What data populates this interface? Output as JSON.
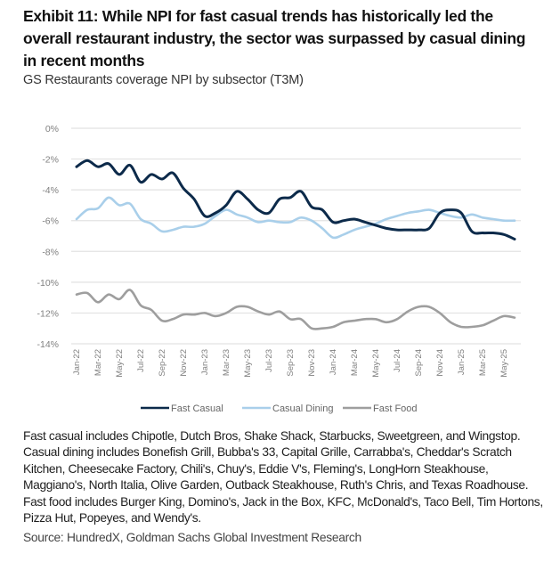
{
  "title": "Exhibit 11: While NPI for fast casual trends has historically led the overall restaurant industry, the sector was surpassed by casual dining in recent months",
  "subtitle": "GS Restaurants coverage NPI by subsector (T3M)",
  "notes": "Fast casual includes Chipotle, Dutch Bros, Shake Shack, Starbucks, Sweetgreen, and Wingstop. Casual dining includes Bonefish Grill, Bubba's 33, Capital Grille, Carrabba's, Cheddar's Scratch Kitchen, Cheesecake Factory, Chili's, Chuy's, Eddie V's, Fleming's, LongHorn Steakhouse, Maggiano's, North Italia, Olive Garden, Outback Steakhouse, Ruth's Chris, and Texas Roadhouse. Fast food includes Burger King, Domino's, Jack in the Box, KFC, McDonald's, Taco Bell, Tim Hortons, Pizza Hut, Popeyes, and Wendy's.",
  "source": "Source: HundredX, Goldman Sachs Global Investment Research",
  "chart_data": {
    "type": "line",
    "title": "GS Restaurants coverage NPI by subsector (T3M)",
    "xlabel": "",
    "ylabel": "",
    "ylim": [
      -14,
      0
    ],
    "yticks": [
      0,
      -2,
      -4,
      -6,
      -8,
      -10,
      -12,
      -14
    ],
    "ytick_labels": [
      "0%",
      "-2%",
      "-4%",
      "-6%",
      "-8%",
      "-10%",
      "-12%",
      "-14%"
    ],
    "grid": true,
    "legend_position": "bottom",
    "x": [
      "Jan-22",
      "Feb-22",
      "Mar-22",
      "Apr-22",
      "May-22",
      "Jun-22",
      "Jul-22",
      "Aug-22",
      "Sep-22",
      "Oct-22",
      "Nov-22",
      "Dec-22",
      "Jan-23",
      "Feb-23",
      "Mar-23",
      "Apr-23",
      "May-23",
      "Jun-23",
      "Jul-23",
      "Aug-23",
      "Sep-23",
      "Oct-23",
      "Nov-23",
      "Dec-23",
      "Jan-24",
      "Feb-24",
      "Mar-24",
      "Apr-24",
      "May-24",
      "Jun-24",
      "Jul-24",
      "Aug-24",
      "Sep-24",
      "Oct-24",
      "Nov-24",
      "Dec-24",
      "Jan-25",
      "Feb-25",
      "Mar-25",
      "Apr-25",
      "May-25",
      "Jun-25"
    ],
    "xtick_labels": [
      "Jan-22",
      "Mar-22",
      "May-22",
      "Jul-22",
      "Sep-22",
      "Nov-22",
      "Jan-23",
      "Mar-23",
      "May-23",
      "Jul-23",
      "Sep-23",
      "Nov-23",
      "Jan-24",
      "Mar-24",
      "May-24",
      "Jul-24",
      "Sep-24",
      "Nov-24",
      "Jan-25",
      "Mar-25",
      "May-25"
    ],
    "series": [
      {
        "name": "Fast Casual",
        "color": "#0c2a4a",
        "values": [
          -2.5,
          -2.1,
          -2.5,
          -2.3,
          -3.0,
          -2.4,
          -3.5,
          -3.0,
          -3.3,
          -2.9,
          -3.9,
          -4.6,
          -5.7,
          -5.5,
          -5.0,
          -4.1,
          -4.6,
          -5.3,
          -5.5,
          -4.6,
          -4.5,
          -4.1,
          -5.1,
          -5.3,
          -6.1,
          -6.0,
          -5.9,
          -6.1,
          -6.3,
          -6.5,
          -6.6,
          -6.6,
          -6.6,
          -6.5,
          -5.5,
          -5.3,
          -5.5,
          -6.7,
          -6.8,
          -6.8,
          -6.9,
          -7.2
        ]
      },
      {
        "name": "Casual Dining",
        "color": "#a9cfea",
        "values": [
          -5.9,
          -5.3,
          -5.2,
          -4.5,
          -5.0,
          -4.9,
          -5.9,
          -6.2,
          -6.7,
          -6.6,
          -6.4,
          -6.4,
          -6.2,
          -5.7,
          -5.3,
          -5.6,
          -5.8,
          -6.1,
          -6.0,
          -6.1,
          -6.1,
          -5.8,
          -6.0,
          -6.5,
          -7.1,
          -6.9,
          -6.6,
          -6.4,
          -6.2,
          -5.9,
          -5.7,
          -5.5,
          -5.4,
          -5.3,
          -5.5,
          -5.7,
          -5.8,
          -5.6,
          -5.8,
          -5.9,
          -6.0,
          -6.0
        ]
      },
      {
        "name": "Fast Food",
        "color": "#9e9e9e",
        "values": [
          -10.8,
          -10.7,
          -11.3,
          -10.8,
          -11.1,
          -10.5,
          -11.5,
          -11.8,
          -12.5,
          -12.4,
          -12.1,
          -12.1,
          -12.0,
          -12.2,
          -12.0,
          -11.6,
          -11.6,
          -11.9,
          -12.1,
          -11.9,
          -12.4,
          -12.4,
          -13.0,
          -13.0,
          -12.9,
          -12.6,
          -12.5,
          -12.4,
          -12.4,
          -12.6,
          -12.4,
          -11.9,
          -11.6,
          -11.6,
          -12.0,
          -12.6,
          -12.9,
          -12.9,
          -12.8,
          -12.5,
          -12.2,
          -12.3
        ]
      }
    ]
  }
}
